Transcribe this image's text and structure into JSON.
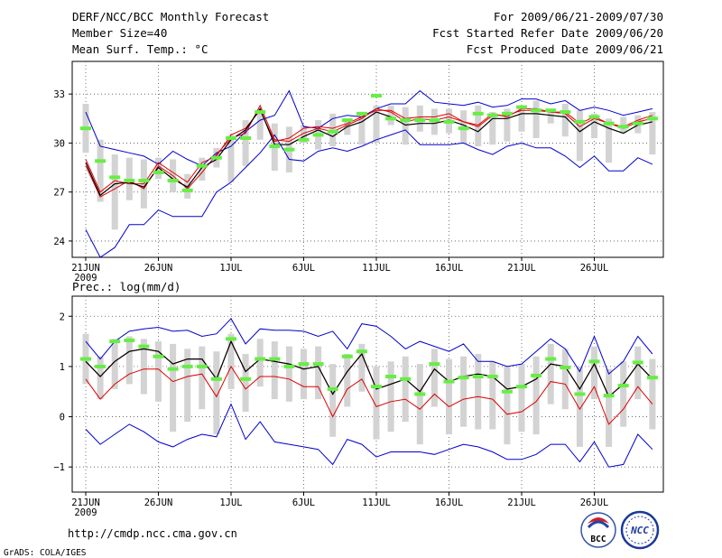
{
  "header": {
    "title": "DERF/NCC/BCC Monthly Forecast",
    "member_size": "Member Size=40",
    "variable": "Mean Surf. Temp.: °C",
    "period": "For 2009/06/21-2009/07/30",
    "refer_date": "Fcst Started Refer Date 2009/06/20",
    "produced": "Fcst Produced Date 2009/06/21"
  },
  "footer": {
    "url": "http://cmdp.ncc.cma.gov.cn",
    "credit": "GrADS: COLA/IGES"
  },
  "logos": {
    "bcc": "BCC",
    "ncc": "NCC"
  },
  "colors": {
    "box": "#d3d3d3",
    "observed": "#66ee44",
    "mean": "#000000",
    "median": "#dd0000",
    "envelope": "#0000cc",
    "gridline": "#555555"
  },
  "chart_data": [
    {
      "type": "line",
      "title": "Mean Surf. Temp.: °C",
      "x_start": "2009-06-21",
      "x_days": 40,
      "xticks": [
        "21JUN",
        "26JUN",
        "1JUL",
        "6JUL",
        "11JUL",
        "16JUL",
        "21JUL",
        "26JUL"
      ],
      "xtick_year": "2009",
      "ylim": [
        23,
        35
      ],
      "yticks": [
        "24",
        "27",
        "30",
        "33"
      ],
      "ytick_values": [
        24,
        27,
        30,
        33
      ],
      "series": [
        {
          "name": "max",
          "values": [
            31.9,
            29.8,
            29.6,
            29.4,
            29.2,
            28.7,
            29.5,
            29.0,
            28.6,
            29.4,
            29.8,
            30.7,
            31.4,
            31.7,
            33.2,
            31.0,
            30.9,
            31.5,
            31.7,
            31.6,
            32.1,
            32.4,
            32.4,
            33.2,
            32.5,
            32.4,
            32.3,
            32.5,
            32.2,
            32.3,
            32.7,
            32.7,
            32.4,
            32.6,
            32.0,
            32.2,
            32.0,
            31.7,
            31.9,
            32.1
          ]
        },
        {
          "name": "min",
          "values": [
            24.7,
            23.0,
            23.6,
            25.0,
            25.0,
            25.9,
            25.5,
            25.5,
            25.5,
            27.0,
            27.6,
            28.5,
            29.4,
            30.5,
            29.0,
            28.9,
            29.5,
            29.7,
            29.5,
            29.8,
            30.2,
            30.5,
            30.8,
            29.9,
            29.9,
            29.9,
            30.0,
            29.6,
            29.3,
            29.8,
            30.0,
            29.7,
            29.7,
            29.2,
            28.5,
            29.2,
            28.3,
            28.3,
            29.1,
            28.7
          ]
        },
        {
          "name": "mean",
          "values": [
            28.8,
            26.8,
            27.5,
            27.6,
            27.3,
            28.5,
            27.8,
            27.3,
            28.5,
            29.0,
            30.2,
            30.8,
            32.1,
            29.9,
            29.9,
            30.4,
            30.8,
            30.4,
            31.0,
            31.3,
            31.9,
            31.6,
            31.1,
            31.2,
            31.2,
            31.4,
            31.1,
            30.7,
            31.5,
            31.5,
            31.8,
            31.8,
            31.7,
            31.6,
            30.7,
            31.3,
            30.9,
            30.6,
            31.1,
            31.3
          ]
        },
        {
          "name": "median",
          "values": [
            28.6,
            26.7,
            27.2,
            27.7,
            27.2,
            28.6,
            28.0,
            27.2,
            28.2,
            29.3,
            30.3,
            30.6,
            32.3,
            30.2,
            30.1,
            30.6,
            30.9,
            30.7,
            31.1,
            31.5,
            32.1,
            31.9,
            31.3,
            31.5,
            31.4,
            31.6,
            31.3,
            31.0,
            31.7,
            31.7,
            32.0,
            32.0,
            31.9,
            31.8,
            31.0,
            31.5,
            31.2,
            30.9,
            31.3,
            31.5
          ]
        },
        {
          "name": "control",
          "values": [
            29.0,
            27.0,
            27.7,
            27.5,
            27.5,
            28.8,
            28.2,
            27.6,
            28.8,
            29.2,
            30.5,
            30.9,
            32.0,
            30.1,
            30.3,
            30.9,
            31.0,
            30.9,
            31.2,
            31.6,
            32.0,
            32.0,
            31.5,
            31.6,
            31.6,
            31.8,
            31.3,
            31.1,
            31.8,
            31.6,
            32.1,
            32.1,
            31.9,
            31.9,
            31.2,
            31.6,
            31.2,
            31.0,
            31.4,
            31.7
          ]
        },
        {
          "name": "box_low",
          "values": [
            29.4,
            26.4,
            24.7,
            26.5,
            26.0,
            27.8,
            27.0,
            26.6,
            27.7,
            28.5,
            27.6,
            28.6,
            30.2,
            28.3,
            28.2,
            30.0,
            29.6,
            29.8,
            30.5,
            29.9,
            30.0,
            31.1,
            29.9,
            30.7,
            30.5,
            30.6,
            30.0,
            29.8,
            29.9,
            30.1,
            30.7,
            30.3,
            31.2,
            30.4,
            28.9,
            30.3,
            28.8,
            30.6,
            30.6,
            29.3
          ]
        },
        {
          "name": "box_high",
          "values": [
            32.4,
            30.2,
            29.3,
            29.1,
            29.0,
            29.1,
            29.0,
            28.1,
            29.1,
            29.7,
            30.5,
            31.4,
            31.8,
            31.2,
            31.0,
            31.1,
            31.4,
            31.8,
            31.4,
            31.9,
            32.3,
            32.3,
            32.2,
            32.3,
            32.1,
            32.1,
            32.0,
            32.3,
            31.9,
            32.1,
            32.3,
            32.6,
            32.1,
            32.4,
            32.0,
            31.8,
            31.5,
            31.6,
            31.7,
            31.9
          ]
        },
        {
          "name": "green_marker",
          "values": [
            30.9,
            28.9,
            27.9,
            27.7,
            27.7,
            28.2,
            27.7,
            27.1,
            28.6,
            29.1,
            30.3,
            30.3,
            31.9,
            29.8,
            29.6,
            30.2,
            30.5,
            30.7,
            31.4,
            31.8,
            32.9,
            31.5,
            31.4,
            31.4,
            31.4,
            31.3,
            30.9,
            31.8,
            31.7,
            31.8,
            32.2,
            32.0,
            32.0,
            31.9,
            31.3,
            31.6,
            31.2,
            31.0,
            31.2,
            31.5
          ]
        }
      ]
    },
    {
      "type": "line",
      "title": "Prec.: log(mm/d)",
      "x_start": "2009-06-21",
      "x_days": 40,
      "xticks": [
        "21JUN",
        "26JUN",
        "1JUL",
        "6JUL",
        "11JUL",
        "16JUL",
        "21JUL",
        "26JUL"
      ],
      "xtick_year": "2009",
      "ylim": [
        -1.5,
        2.4
      ],
      "yticks": [
        "−1",
        "0",
        "1",
        "2"
      ],
      "ytick_values": [
        -1,
        0,
        1,
        2
      ],
      "series": [
        {
          "name": "max",
          "values": [
            1.5,
            1.15,
            1.5,
            1.7,
            1.75,
            1.78,
            1.7,
            1.72,
            1.6,
            1.65,
            1.95,
            1.45,
            1.75,
            1.72,
            1.72,
            1.7,
            1.6,
            1.7,
            1.35,
            1.85,
            1.8,
            1.6,
            1.35,
            1.5,
            1.4,
            1.3,
            1.45,
            1.1,
            1.1,
            1.0,
            1.05,
            1.3,
            1.55,
            1.35,
            0.9,
            1.6,
            0.85,
            1.1,
            1.6,
            1.25
          ]
        },
        {
          "name": "min",
          "values": [
            -0.25,
            -0.55,
            -0.35,
            -0.15,
            -0.3,
            -0.5,
            -0.6,
            -0.45,
            -0.35,
            -0.4,
            0.25,
            -0.45,
            -0.1,
            -0.5,
            -0.55,
            -0.6,
            -0.65,
            -0.95,
            -0.45,
            -0.55,
            -0.8,
            -0.7,
            -0.7,
            -0.7,
            -0.75,
            -0.65,
            -0.55,
            -0.6,
            -0.7,
            -0.85,
            -0.85,
            -0.75,
            -0.55,
            -0.55,
            -0.9,
            -0.5,
            -1.0,
            -0.95,
            -0.35,
            -0.65
          ]
        },
        {
          "name": "mean",
          "values": [
            1.1,
            0.8,
            1.1,
            1.3,
            1.35,
            1.3,
            1.05,
            1.15,
            1.15,
            0.75,
            1.5,
            0.9,
            1.15,
            1.1,
            1.05,
            0.95,
            1.0,
            0.45,
            0.9,
            1.25,
            0.55,
            0.65,
            0.75,
            0.5,
            0.95,
            0.7,
            0.8,
            0.85,
            0.8,
            0.55,
            0.6,
            0.75,
            1.05,
            1.0,
            0.55,
            1.05,
            0.4,
            0.65,
            1.05,
            0.75
          ]
        },
        {
          "name": "median",
          "values": [
            0.75,
            0.35,
            0.65,
            0.85,
            0.95,
            0.95,
            0.7,
            0.8,
            0.85,
            0.4,
            1.0,
            0.55,
            0.8,
            0.8,
            0.75,
            0.6,
            0.6,
            0.0,
            0.55,
            0.75,
            0.2,
            0.3,
            0.35,
            0.15,
            0.45,
            0.2,
            0.35,
            0.4,
            0.35,
            0.05,
            0.1,
            0.3,
            0.7,
            0.65,
            0.15,
            0.6,
            -0.15,
            0.15,
            0.6,
            0.25
          ]
        },
        {
          "name": "control",
          "values": [
            1.1,
            0.8,
            1.1,
            1.3,
            1.35,
            1.3,
            1.05,
            1.15,
            1.15,
            0.75,
            1.5,
            0.9,
            1.15,
            1.1,
            1.05,
            0.95,
            1.0,
            0.45,
            0.9,
            1.25,
            0.55,
            0.65,
            0.75,
            0.5,
            0.95,
            0.7,
            0.8,
            0.85,
            0.8,
            0.55,
            0.6,
            0.75,
            1.05,
            1.0,
            0.55,
            1.05,
            0.4,
            0.65,
            1.05,
            0.75
          ]
        },
        {
          "name": "box_low",
          "values": [
            0.65,
            0.35,
            0.55,
            0.65,
            0.45,
            0.3,
            -0.3,
            -0.1,
            0.15,
            -0.35,
            0.55,
            0.1,
            0.6,
            0.35,
            0.3,
            0.35,
            0.35,
            -0.4,
            0.2,
            0.5,
            -0.45,
            -0.3,
            -0.1,
            -0.55,
            0.2,
            -0.35,
            -0.2,
            -0.25,
            -0.25,
            -0.55,
            -0.3,
            -0.35,
            0.25,
            0.15,
            -0.6,
            0.35,
            -0.6,
            -0.2,
            0.35,
            -0.25
          ]
        },
        {
          "name": "box_high",
          "values": [
            1.65,
            1.2,
            1.55,
            1.6,
            1.55,
            1.5,
            1.45,
            1.35,
            1.4,
            1.3,
            1.65,
            1.25,
            1.55,
            1.5,
            1.4,
            1.35,
            1.4,
            1.05,
            1.25,
            1.45,
            1.0,
            1.1,
            1.2,
            1.05,
            1.35,
            1.15,
            1.2,
            1.25,
            1.1,
            1.0,
            1.05,
            1.2,
            1.45,
            1.35,
            1.0,
            1.4,
            0.95,
            1.1,
            1.4,
            1.15
          ]
        },
        {
          "name": "green_marker",
          "values": [
            1.15,
            1.0,
            1.5,
            1.52,
            1.4,
            1.2,
            0.95,
            1.0,
            1.0,
            0.75,
            1.55,
            0.75,
            1.15,
            1.15,
            1.0,
            1.05,
            1.05,
            0.55,
            1.2,
            1.3,
            0.6,
            0.8,
            0.75,
            0.45,
            1.05,
            0.7,
            0.78,
            0.8,
            0.8,
            0.5,
            0.6,
            0.82,
            1.15,
            0.98,
            0.45,
            1.1,
            0.42,
            0.62,
            1.08,
            0.78
          ]
        }
      ]
    }
  ]
}
